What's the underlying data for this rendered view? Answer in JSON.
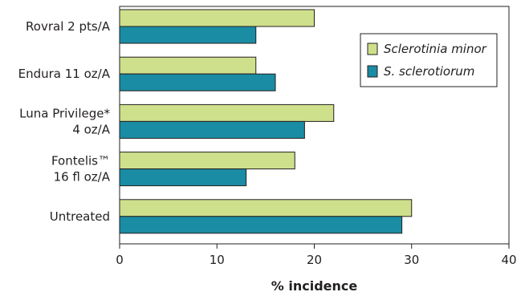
{
  "chart_data": {
    "type": "bar",
    "orientation": "horizontal",
    "categories": [
      [
        "Rovral 2 pts/A"
      ],
      [
        "Endura 11 oz/A"
      ],
      [
        "Luna Privilege*",
        "4 oz/A"
      ],
      [
        "Fontelis™",
        "16 fl oz/A"
      ],
      [
        "Untreated"
      ]
    ],
    "series": [
      {
        "name": "Sclerotinia minor",
        "color": "#cfe08c",
        "values": [
          20,
          14,
          22,
          18,
          30
        ]
      },
      {
        "name": "S. sclerotiorum",
        "color": "#1a8ca3",
        "values": [
          14,
          16,
          19,
          13,
          29
        ]
      }
    ],
    "xlabel": "% incidence",
    "xlim": [
      0,
      40
    ],
    "xticks": [
      0,
      10,
      20,
      30,
      40
    ],
    "grid": false,
    "legend_position": "top-right"
  }
}
